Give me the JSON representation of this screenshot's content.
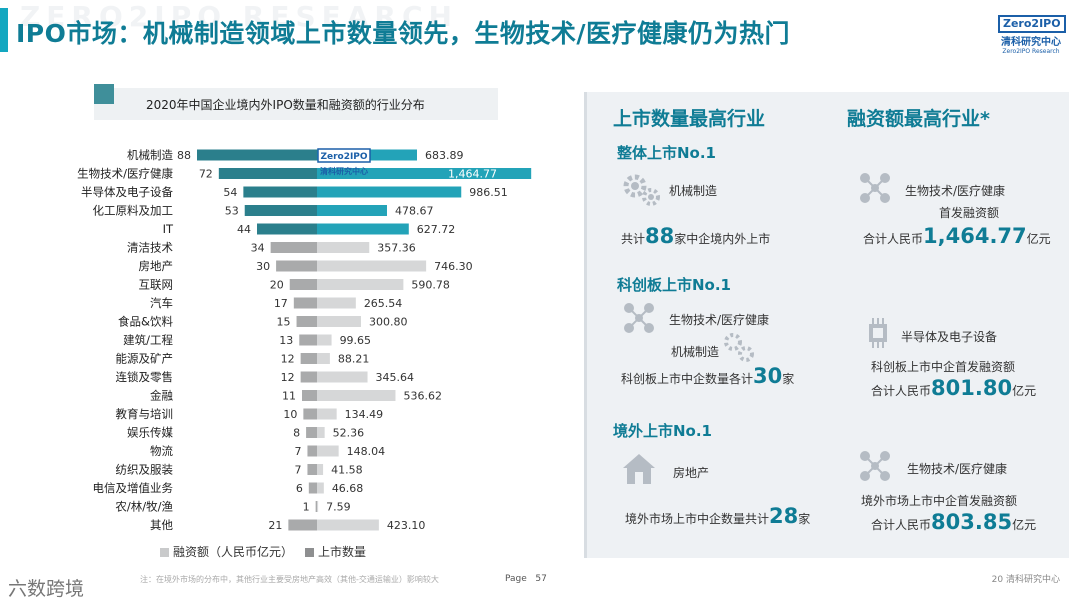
{
  "header": {
    "title": "IPO市场：机械制造领域上市数量领先，生物技术/医疗健康仍为热门",
    "watermark_text": "ZERO2IPO RESEARCH"
  },
  "logo": {
    "box": "Zero2IPO",
    "cn": "清科研究中心",
    "en": "Zero2IPO Research"
  },
  "chart_data": {
    "type": "bar",
    "title": "2020年中国企业境内外IPO数量和融资额的行业分布",
    "categories": [
      "机械制造",
      "生物技术/医疗健康",
      "半导体及电子设备",
      "化工原料及加工",
      "IT",
      "清洁技术",
      "房地产",
      "互联网",
      "汽车",
      "食品&饮料",
      "建筑/工程",
      "能源及矿产",
      "连锁及零售",
      "金融",
      "教育与培训",
      "娱乐传媒",
      "物流",
      "纺织及服装",
      "电信及增值业务",
      "农/林/牧/渔",
      "其他"
    ],
    "series": [
      {
        "name": "上市数量",
        "values": [
          88,
          72,
          54,
          53,
          44,
          34,
          30,
          20,
          17,
          15,
          13,
          12,
          12,
          11,
          10,
          8,
          7,
          7,
          6,
          1,
          21
        ]
      },
      {
        "name": "融资额（人民币亿元）",
        "values": [
          683.89,
          1464.77,
          986.51,
          478.67,
          627.72,
          357.36,
          746.3,
          590.78,
          265.54,
          300.8,
          99.65,
          88.21,
          345.64,
          536.62,
          134.49,
          52.36,
          148.04,
          41.58,
          46.68,
          7.59,
          423.1
        ]
      }
    ],
    "count_labels": [
      "88",
      "72",
      "54",
      "53",
      "44",
      "34",
      "30",
      "20",
      "17",
      "15",
      "13",
      "12",
      "12",
      "11",
      "10",
      "8",
      "7",
      "7",
      "6",
      "1",
      "21"
    ],
    "amount_labels": [
      "683.89",
      "1,464.77",
      "986.51",
      "478.67",
      "627.72",
      "357.36",
      "746.30",
      "590.78",
      "265.54",
      "300.80",
      "99.65",
      "88.21",
      "345.64",
      "536.62",
      "134.49",
      "52.36",
      "148.04",
      "41.58",
      "46.68",
      "7.59",
      "423.10"
    ],
    "legend": [
      "融资额（人民币亿元）",
      "上市数量"
    ],
    "highlight_count": 5,
    "colors": {
      "count_top": "#2b7f8c",
      "amount_top": "#23a3b8",
      "count_other": "#a9aaab",
      "amount_other": "#d6d7d8"
    }
  },
  "chart_watermark": {
    "box": "Zero2IPO",
    "cn": "清科研究中心"
  },
  "right": {
    "col1_head": "上市数量最高行业",
    "col2_head": "融资额最高行业*",
    "s1": {
      "title": "整体上市No.1",
      "industry": "机械制造",
      "pre": "共计",
      "num": "88",
      "post": "家中企境内外上市"
    },
    "s2": {
      "title": "科创板上市No.1",
      "industry1": "生物技术/医疗健康",
      "industry2": "机械制造",
      "pre": "科创板上市中企数量各计",
      "num": "30",
      "post": "家"
    },
    "s3": {
      "title": "境外上市No.1",
      "industry": "房地产",
      "pre": "境外市场上市中企数量共计",
      "num": "28",
      "post": "家"
    },
    "f1": {
      "industry": "生物技术/医疗健康",
      "line": "首发融资额",
      "pre": "合计人民币",
      "num": "1,464.77",
      "post": "亿元"
    },
    "f2": {
      "industry": "半导体及电子设备",
      "line": "科创板上市中企首发融资额",
      "pre": "合计人民币",
      "num": "801.80",
      "post": "亿元"
    },
    "f3": {
      "industry": "生物技术/医疗健康",
      "line": "境外市场上市中企首发融资额",
      "pre": "合计人民币",
      "num": "803.85",
      "post": "亿元"
    }
  },
  "footer": {
    "note": "注：在境外市场的分布中，其他行业主要受房地产高效（其他-交通运输业）影响较大",
    "page_label": "Page",
    "page_num": "57",
    "logo_text": "20 清科研究中心",
    "watermark": "六数跨境"
  }
}
